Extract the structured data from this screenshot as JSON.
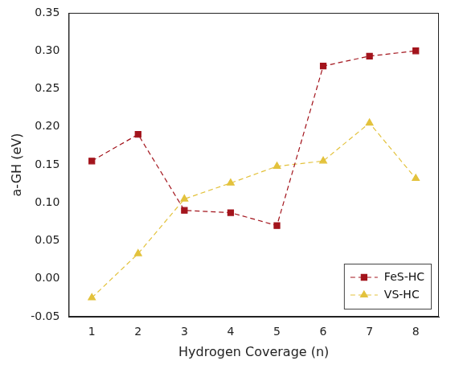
{
  "chart_data": {
    "type": "line",
    "x_label": "Hydrogen Coverage (n)",
    "y_label": "a-GH (eV)",
    "x": [
      1,
      2,
      3,
      4,
      5,
      6,
      7,
      8
    ],
    "series": [
      {
        "name": "FeS-HC",
        "color": "#a3141c",
        "marker": "square",
        "line_style": "dashed",
        "values": [
          0.155,
          0.19,
          0.09,
          0.087,
          0.07,
          0.28,
          0.293,
          0.3
        ]
      },
      {
        "name": "VS-HC",
        "color": "#e3c23c",
        "marker": "triangle",
        "line_style": "dashed",
        "values": [
          -0.025,
          0.033,
          0.105,
          0.126,
          0.148,
          0.155,
          0.205,
          0.132
        ]
      }
    ],
    "xlim": [
      0.5,
      8.5
    ],
    "xticks": [
      1,
      2,
      3,
      4,
      5,
      6,
      7,
      8
    ],
    "ylim": [
      -0.05,
      0.35
    ],
    "yticks": [
      -0.05,
      {
        "value": 0,
        "label": "0.00"
      },
      0.05,
      {
        "value": 0.1,
        "label": "0.10"
      },
      0.15,
      {
        "value": 0.2,
        "label": "0.20"
      },
      0.25,
      {
        "value": 0.3,
        "label": "0.30"
      },
      0.35
    ],
    "grid": false,
    "legend": "lower right"
  }
}
